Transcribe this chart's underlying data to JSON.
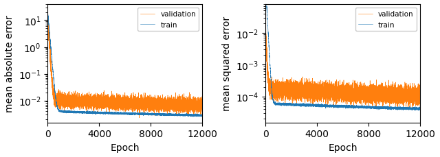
{
  "n_epochs": 12000,
  "train_color": "#1f77b4",
  "val_color": "#ff7f0e",
  "linewidth": 0.4,
  "alpha": 1.0,
  "left_ylabel": "mean absolute error",
  "right_ylabel": "mean squared error",
  "xlabel": "Epoch",
  "legend_labels": [
    "train",
    "validation"
  ],
  "xticks": [
    0,
    4000,
    8000,
    12000
  ],
  "left_ylim": [
    0.0015,
    40
  ],
  "right_ylim": [
    1.5e-05,
    0.08
  ],
  "figsize": [
    6.4,
    2.3
  ],
  "dpi": 100
}
